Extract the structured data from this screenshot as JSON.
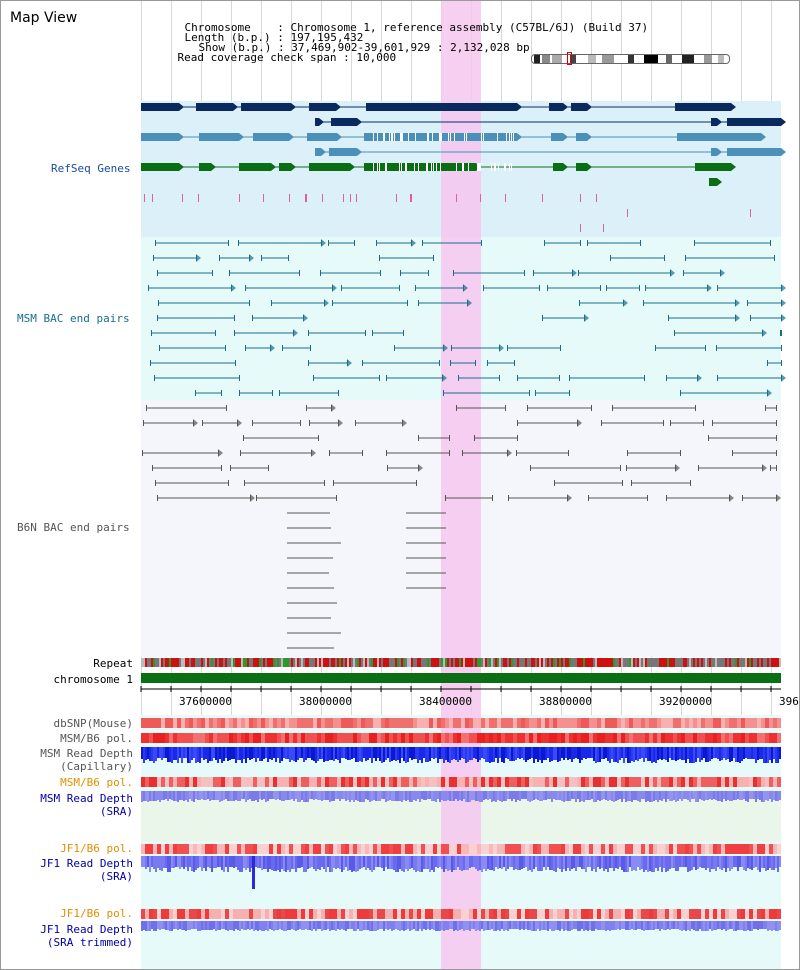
{
  "header": {
    "title": "Map View",
    "chromosome_label": "Chromosome",
    "chromosome_value": "Chromosome 1, reference assembly (C57BL/6J) (Build 37)",
    "length_label": "Length (b.p.)",
    "length_value": "197,195,432",
    "show_label": "Show (b.p.)",
    "show_value": "37,469,902-39,601,929 : 2,132,028 bp",
    "coverage_label": "Read coverage check span",
    "coverage_value": "10,000"
  },
  "tracks": {
    "refseq": "RefSeq Genes",
    "msm_bac": "MSM BAC end pairs",
    "b6n_bac": "B6N BAC end pairs",
    "repeat": "Repeat",
    "chromosome": "chromosome 1",
    "dbsnp": "dbSNP(Mouse)",
    "msm_b6_pol_1": "MSM/B6 pol.",
    "msm_depth_cap_1": "MSM Read Depth",
    "msm_depth_cap_2": "(Capillary)",
    "msm_b6_pol_2": "MSM/B6 pol.",
    "msm_depth_sra_1": "MSM Read Depth",
    "msm_depth_sra_2": "(SRA)",
    "jf1_b6_pol_1": "JF1/B6 pol.",
    "jf1_depth_sra_1": "JF1 Read Depth",
    "jf1_depth_sra_2": "(SRA)",
    "jf1_b6_pol_2": "JF1/B6 pol.",
    "jf1_depth_trim_1": "JF1 Read Depth",
    "jf1_depth_trim_2": "(SRA trimmed)"
  },
  "axis": {
    "ticks": [
      "37600000",
      "38000000",
      "38400000",
      "38800000",
      "39200000",
      "396"
    ]
  },
  "colors": {
    "refseq_dark": "#0a2a5e",
    "refseq_light": "#4a90b8",
    "refseq_green": "#0a6e14",
    "msm_bac": "#1a6e8a",
    "b6n_bac": "#555555",
    "highlight": "#f6c7ef",
    "msm_label": "#1a6e8a",
    "pol_label": "#e09000",
    "depth_label": "#0000a0"
  }
}
